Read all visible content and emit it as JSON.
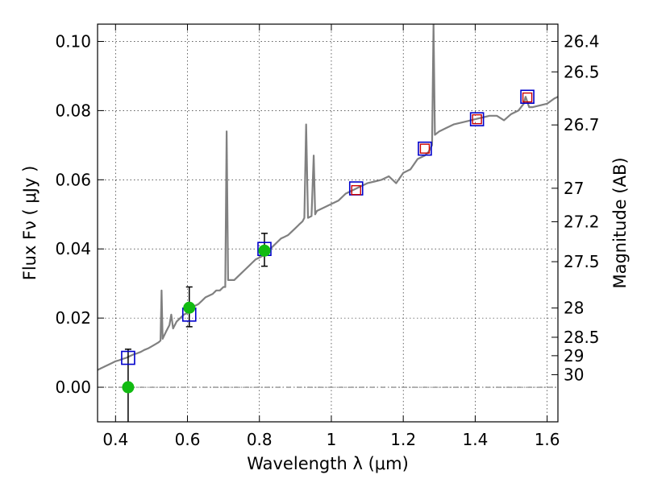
{
  "chart_data": {
    "type": "scatter",
    "xlabel": "Wavelength  λ (μm)",
    "ylabel": "Flux  Fν  ( μJy )",
    "y2label": "Magnitude (AB)",
    "xlim": [
      0.35,
      1.63
    ],
    "ylim": [
      -0.01,
      0.105
    ],
    "xticks": [
      0.4,
      0.6,
      0.8,
      1.0,
      1.2,
      1.4,
      1.6
    ],
    "xtick_labels": [
      "0.4",
      "0.6",
      "0.8",
      "1",
      "1.2",
      "1.4",
      "1.6"
    ],
    "yticks": [
      0.0,
      0.02,
      0.04,
      0.06,
      0.08,
      0.1
    ],
    "ytick_labels": [
      "0.00",
      "0.02",
      "0.04",
      "0.06",
      "0.08",
      "0.10"
    ],
    "mag_ticks": [
      "26.4",
      "26.5",
      "26.7",
      "27",
      "27.2",
      "27.5",
      "28",
      "28.5",
      "29",
      "30"
    ],
    "grid": true,
    "colors": {
      "spectrum": "#808080",
      "model": "#0000cc",
      "model_interp": "#cc0000",
      "observed": "#11bb11",
      "errorbar": "#000000",
      "zero_line": "#555555"
    },
    "spectrum": [
      [
        0.35,
        0.005
      ],
      [
        0.36,
        0.0055
      ],
      [
        0.37,
        0.006
      ],
      [
        0.38,
        0.0065
      ],
      [
        0.39,
        0.007
      ],
      [
        0.4,
        0.0075
      ],
      [
        0.41,
        0.0078
      ],
      [
        0.42,
        0.0082
      ],
      [
        0.43,
        0.0085
      ],
      [
        0.44,
        0.009
      ],
      [
        0.45,
        0.0095
      ],
      [
        0.46,
        0.0098
      ],
      [
        0.47,
        0.0102
      ],
      [
        0.48,
        0.0108
      ],
      [
        0.49,
        0.0112
      ],
      [
        0.5,
        0.0118
      ],
      [
        0.51,
        0.0124
      ],
      [
        0.52,
        0.013
      ],
      [
        0.525,
        0.0135
      ],
      [
        0.528,
        0.028
      ],
      [
        0.531,
        0.014
      ],
      [
        0.54,
        0.016
      ],
      [
        0.55,
        0.018
      ],
      [
        0.555,
        0.021
      ],
      [
        0.56,
        0.017
      ],
      [
        0.57,
        0.019
      ],
      [
        0.58,
        0.02
      ],
      [
        0.59,
        0.021
      ],
      [
        0.6,
        0.0215
      ],
      [
        0.61,
        0.022
      ],
      [
        0.62,
        0.0235
      ],
      [
        0.63,
        0.024
      ],
      [
        0.64,
        0.025
      ],
      [
        0.65,
        0.026
      ],
      [
        0.66,
        0.0265
      ],
      [
        0.67,
        0.027
      ],
      [
        0.68,
        0.028
      ],
      [
        0.69,
        0.028
      ],
      [
        0.7,
        0.029
      ],
      [
        0.705,
        0.029
      ],
      [
        0.709,
        0.074
      ],
      [
        0.713,
        0.031
      ],
      [
        0.72,
        0.031
      ],
      [
        0.73,
        0.031
      ],
      [
        0.74,
        0.032
      ],
      [
        0.75,
        0.033
      ],
      [
        0.76,
        0.034
      ],
      [
        0.77,
        0.035
      ],
      [
        0.78,
        0.036
      ],
      [
        0.79,
        0.037
      ],
      [
        0.8,
        0.0375
      ],
      [
        0.81,
        0.038
      ],
      [
        0.82,
        0.039
      ],
      [
        0.83,
        0.04
      ],
      [
        0.84,
        0.041
      ],
      [
        0.85,
        0.042
      ],
      [
        0.86,
        0.043
      ],
      [
        0.87,
        0.0435
      ],
      [
        0.88,
        0.044
      ],
      [
        0.89,
        0.045
      ],
      [
        0.9,
        0.046
      ],
      [
        0.91,
        0.047
      ],
      [
        0.92,
        0.048
      ],
      [
        0.925,
        0.049
      ],
      [
        0.93,
        0.076
      ],
      [
        0.935,
        0.049
      ],
      [
        0.945,
        0.0495
      ],
      [
        0.951,
        0.067
      ],
      [
        0.955,
        0.05
      ],
      [
        0.96,
        0.051
      ],
      [
        0.98,
        0.052
      ],
      [
        1.0,
        0.053
      ],
      [
        1.02,
        0.054
      ],
      [
        1.04,
        0.056
      ],
      [
        1.06,
        0.057
      ],
      [
        1.08,
        0.058
      ],
      [
        1.1,
        0.059
      ],
      [
        1.12,
        0.0595
      ],
      [
        1.14,
        0.06
      ],
      [
        1.16,
        0.061
      ],
      [
        1.18,
        0.059
      ],
      [
        1.2,
        0.062
      ],
      [
        1.22,
        0.063
      ],
      [
        1.24,
        0.066
      ],
      [
        1.26,
        0.067
      ],
      [
        1.27,
        0.068
      ],
      [
        1.28,
        0.07
      ],
      [
        1.284,
        0.105
      ],
      [
        1.288,
        0.073
      ],
      [
        1.3,
        0.074
      ],
      [
        1.32,
        0.075
      ],
      [
        1.34,
        0.076
      ],
      [
        1.36,
        0.0765
      ],
      [
        1.38,
        0.077
      ],
      [
        1.4,
        0.0775
      ],
      [
        1.42,
        0.078
      ],
      [
        1.44,
        0.0785
      ],
      [
        1.46,
        0.0785
      ],
      [
        1.48,
        0.0772
      ],
      [
        1.5,
        0.079
      ],
      [
        1.52,
        0.08
      ],
      [
        1.535,
        0.082
      ],
      [
        1.54,
        0.084
      ],
      [
        1.55,
        0.081
      ],
      [
        1.56,
        0.081
      ],
      [
        1.58,
        0.0815
      ],
      [
        1.6,
        0.082
      ],
      [
        1.62,
        0.0835
      ],
      [
        1.63,
        0.084
      ]
    ],
    "model_points": [
      {
        "x": 0.435,
        "y": 0.0085
      },
      {
        "x": 0.605,
        "y": 0.021
      },
      {
        "x": 0.814,
        "y": 0.04
      },
      {
        "x": 1.069,
        "y": 0.0575
      },
      {
        "x": 1.26,
        "y": 0.069
      },
      {
        "x": 1.405,
        "y": 0.0775
      },
      {
        "x": 1.545,
        "y": 0.084
      }
    ],
    "model_interp_points": [
      {
        "x": 1.069,
        "y": 0.057
      },
      {
        "x": 1.26,
        "y": 0.069
      },
      {
        "x": 1.405,
        "y": 0.0775
      },
      {
        "x": 1.545,
        "y": 0.0838
      }
    ],
    "observed_points": [
      {
        "x": 0.435,
        "y": 0.0,
        "err_low": 0.011,
        "err_high": 0.011
      },
      {
        "x": 0.605,
        "y": 0.023,
        "err_low": 0.0055,
        "err_high": 0.006
      },
      {
        "x": 0.814,
        "y": 0.0395,
        "err_low": 0.0045,
        "err_high": 0.005
      }
    ]
  }
}
